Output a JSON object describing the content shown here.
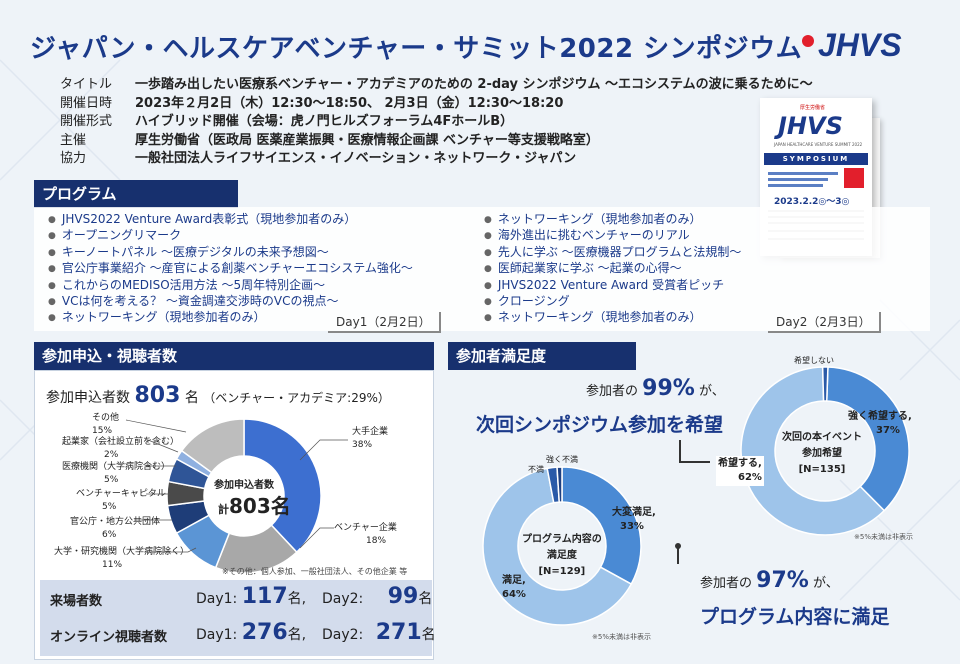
{
  "title": "ジャパン・ヘルスケアベンチャー・サミット2022 シンポジウム",
  "logo_text": "JHVS",
  "info": [
    {
      "key": "タイトル",
      "value": "一歩踏み出したい医療系ベンチャー・アカデミアのための 2-day シンポジウム ～エコシステムの波に乗るために～"
    },
    {
      "key": "開催日時",
      "value": "2023年２月2日（木）12:30～18:50、 2月3日（金）12:30～18:20"
    },
    {
      "key": "開催形式",
      "value": "ハイブリッド開催（会場：虎ノ門ヒルズフォーラム4FホールB）"
    },
    {
      "key": "主催",
      "value": "厚生労働省（医政局 医薬産業振興・医療情報企画課 ベンチャー等支援戦略室）"
    },
    {
      "key": "協力",
      "value": "一般社団法人ライフサイエンス・イノベーション・ネットワーク・ジャパン"
    }
  ],
  "leaflet": {
    "brand": "厚生労働省",
    "logo": "JHVS",
    "subtitle": "JAPAN HEALTHCARE VENTURE SUMMIT 2022",
    "band": "SYMPOSIUM",
    "date": "2023.2.2◎～3◎"
  },
  "program": {
    "heading": "プログラム",
    "day1_label": "Day1（2月2日）",
    "day2_label": "Day2（2月3日）",
    "day1": [
      "JHVS2022 Venture Award表彰式（現地参加者のみ）",
      "オープニングリマーク",
      "キーノートパネル ～医療デジタルの未来予想図～",
      "官公庁事業紹介 ～産官による創薬ベンチャーエコシステム強化～",
      "これからのMEDISO活用方法 ～5周年特別企画～",
      "VCは何を考える？ ～資金調達交渉時のVCの視点～",
      "ネットワーキング（現地参加者のみ）"
    ],
    "day2": [
      "ネットワーキング（現地参加者のみ）",
      "海外進出に挑むベンチャーのリアル",
      "先人に学ぶ ～医療機器プログラムと法規制～",
      "医師起業家に学ぶ ～起業の心得～",
      "JHVS2022 Venture Award 受賞者ピッチ",
      "クロージング",
      "ネットワーキング（現地参加者のみ）"
    ]
  },
  "registration": {
    "heading": "参加申込・視聴者数",
    "label": "参加申込者数",
    "count": "803",
    "unit": "名",
    "note": "（ベンチャー・アカデミア:29%）",
    "center_title": "参加申込者数",
    "center_prefix": "計",
    "center_value": "803名",
    "footnote": "※その他：個人参加、一般社団法人、その他企業 等",
    "labels": {
      "large": [
        "大手企業",
        "38%"
      ],
      "venture": [
        "ベンチャー企業",
        "18%"
      ],
      "univ": [
        "大学・研究機関（大学病院除く）",
        "11%"
      ],
      "gov": [
        "官公庁・地方公共団体",
        "6%"
      ],
      "vc": [
        "ベンチャーキャピタル",
        "5%"
      ],
      "med": [
        "医療機関（大学病院含む）",
        "5%"
      ],
      "consult": [
        "起業家（会社設立前を含む）",
        "2%"
      ],
      "other": [
        "その他",
        "15%"
      ]
    }
  },
  "stats": {
    "onsite_label": "来場者数",
    "online_label": "オンライン視聴者数",
    "day1": "Day1:",
    "day2": "Day2:",
    "unit": "名",
    "sep": ",",
    "onsite_d1": "117",
    "onsite_d2": "99",
    "online_d1": "276",
    "online_d2": "271"
  },
  "satisfaction": {
    "heading": "参加者満足度",
    "pct_a_pre": "参加者の",
    "pct_a": "99%",
    "pct_a_post": "が、",
    "msg_a": "次回シンポジウム参加を希望",
    "pct_b_pre": "参加者の",
    "pct_b": "97%",
    "pct_b_post": "が、",
    "msg_b": "プログラム内容に満足",
    "donut1": {
      "title1": "次回の本イベント",
      "title2": "参加希望",
      "n": "[N=135]",
      "strong": "強く希望する,",
      "strong_v": "37%",
      "hope": "希望する,",
      "hope_v": "62%",
      "no": "希望しない",
      "note": "※5%未満は非表示"
    },
    "donut2": {
      "title1": "プログラム内容の",
      "title2": "満足度",
      "n": "[N=129]",
      "very": "大変満足,",
      "very_v": "33%",
      "sat": "満足,",
      "sat_v": "64%",
      "dis": "不満",
      "vdis": "強く不満",
      "note": "※5%未満は非表示"
    }
  },
  "chart_data": [
    {
      "type": "pie",
      "title": "参加申込者数 計803名",
      "categories": [
        "大手企業",
        "ベンチャー企業",
        "大学・研究機関（大学病院除く）",
        "官公庁・地方公共団体",
        "ベンチャーキャピタル",
        "医療機関（大学病院含む）",
        "起業家（会社設立前を含む）",
        "その他"
      ],
      "values": [
        38,
        18,
        11,
        6,
        5,
        5,
        2,
        15
      ],
      "unit": "%",
      "colors": [
        "#3d6fd0",
        "#a8a8a8",
        "#5b95d5",
        "#1e3d78",
        "#4a4a4a",
        "#2f5597",
        "#8fb0e0",
        "#bdbdbd"
      ]
    },
    {
      "type": "pie",
      "title": "次回の本イベント参加希望 [N=135]",
      "categories": [
        "強く希望する",
        "希望する",
        "希望しない"
      ],
      "values": [
        37,
        62,
        1
      ],
      "unit": "%",
      "colors": [
        "#4a8ad4",
        "#9ec4ea",
        "#2a5aa8"
      ]
    },
    {
      "type": "pie",
      "title": "プログラム内容の満足度 [N=129]",
      "categories": [
        "大変満足",
        "満足",
        "不満",
        "強く不満"
      ],
      "values": [
        33,
        64,
        2,
        1
      ],
      "unit": "%",
      "colors": [
        "#4a8ad4",
        "#9ec4ea",
        "#2a5aa8",
        "#1d3f80"
      ]
    }
  ]
}
